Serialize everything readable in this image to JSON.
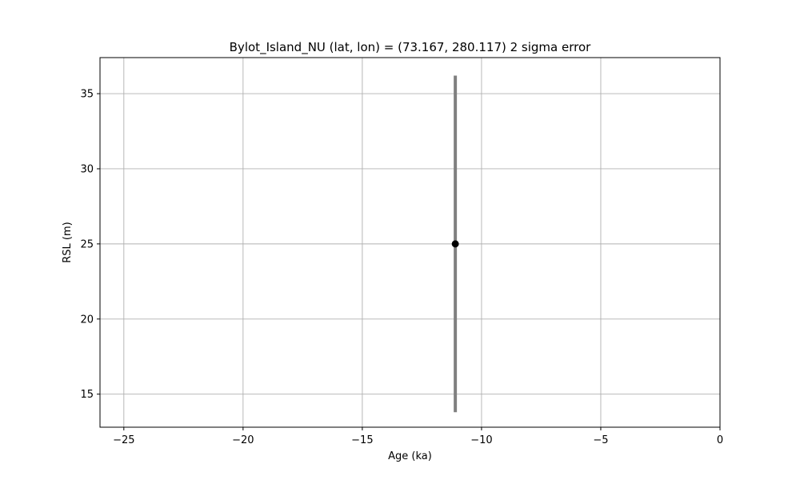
{
  "chart_data": {
    "type": "scatter",
    "title": "Bylot_Island_NU (lat, lon) = (73.167, 280.117)  2 sigma error",
    "xlabel": "Age (ka)",
    "ylabel": "RSL (m)",
    "xlim": [
      -26.0,
      0.0
    ],
    "ylim": [
      12.8,
      37.4
    ],
    "xticks": [
      -25,
      -20,
      -15,
      -10,
      -5,
      0
    ],
    "xtick_labels": [
      "−25",
      "−20",
      "−15",
      "−10",
      "−5",
      "0"
    ],
    "yticks": [
      15,
      20,
      25,
      30,
      35
    ],
    "ytick_labels": [
      "15",
      "20",
      "25",
      "30",
      "35"
    ],
    "grid": true,
    "series": [
      {
        "points": [
          {
            "x": -11.1,
            "y": 25.0,
            "yerr_low": 13.8,
            "yerr_high": 36.2
          }
        ],
        "marker_color": "#000000",
        "errorbar_color": "#808080"
      }
    ]
  }
}
